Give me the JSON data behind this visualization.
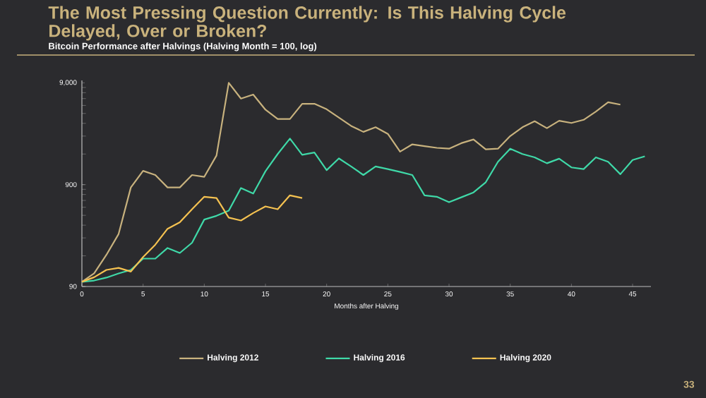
{
  "chart_data": {
    "type": "line",
    "title": "The Most Pressing Question Currently: Is This Halving Cycle Delayed, Over or Broken?",
    "subtitle": "Bitcoin Performance after Halvings (Halving Month = 100, log)",
    "xlabel": "Months after Halving",
    "x": [
      0,
      1,
      2,
      3,
      4,
      5,
      6,
      7,
      8,
      9,
      10,
      11,
      12,
      13,
      14,
      15,
      16,
      17,
      18,
      19,
      20,
      21,
      22,
      23,
      24,
      25,
      26,
      27,
      28,
      29,
      30,
      31,
      32,
      33,
      34,
      35,
      36,
      37,
      38,
      39,
      40,
      41,
      42,
      43,
      44,
      45,
      46
    ],
    "series": [
      {
        "name": "Halving 2012",
        "color": "#c8b27e",
        "values": [
          100,
          121,
          184,
          295,
          845,
          1230,
          1120,
          845,
          845,
          1120,
          1075,
          1740,
          9000,
          6300,
          6900,
          4900,
          3970,
          3970,
          5600,
          5600,
          4950,
          4100,
          3400,
          2970,
          3300,
          2840,
          1900,
          2240,
          2150,
          2070,
          2030,
          2300,
          2500,
          2000,
          2030,
          2700,
          3300,
          3780,
          3230,
          3820,
          3630,
          3900,
          4700,
          5800,
          5500,
          null,
          null
        ]
      },
      {
        "name": "Halving 2016",
        "color": "#3fd9a8",
        "values": [
          100,
          103,
          110,
          121,
          131,
          169,
          169,
          215,
          192,
          242,
          409,
          445,
          500,
          835,
          736,
          1220,
          1800,
          2550,
          1770,
          1860,
          1250,
          1630,
          1360,
          1120,
          1360,
          1280,
          1200,
          1120,
          707,
          685,
          605,
          676,
          755,
          950,
          1510,
          2030,
          1800,
          1670,
          1460,
          1620,
          1330,
          1280,
          1670,
          1510,
          1140,
          1570,
          1710
        ]
      },
      {
        "name": "Halving 2020",
        "color": "#f5c251",
        "values": [
          100,
          111,
          131,
          137,
          126,
          175,
          232,
          332,
          385,
          516,
          685,
          665,
          427,
          400,
          474,
          550,
          516,
          707,
          665,
          null,
          null,
          null,
          null,
          null,
          null,
          null,
          null,
          null,
          null,
          null,
          null,
          null,
          null,
          null,
          null,
          null,
          null,
          null,
          null,
          null,
          null,
          null,
          null,
          null,
          null,
          null,
          null
        ]
      }
    ],
    "xlim": [
      0,
      46.5
    ],
    "ylim": [
      90,
      9500
    ],
    "log": true,
    "xticks": [
      0,
      5,
      10,
      15,
      20,
      25,
      30,
      35,
      40,
      45
    ],
    "yticks": [
      90,
      900,
      {
        "value": 9000,
        "label": "9,000"
      }
    ],
    "legend": "bottom",
    "annotations": [
      "33"
    ]
  }
}
